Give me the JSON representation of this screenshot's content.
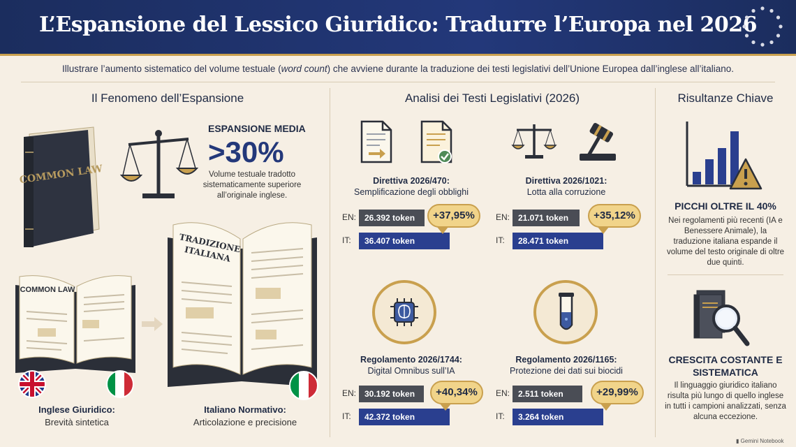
{
  "header": {
    "title": "L’Espansione del Lessico Giuridico: Tradurre l’Europa nel 2026",
    "subtitle_before": "Illustrare l’aumento sistematico del volume testuale (",
    "subtitle_em": "word count",
    "subtitle_after": ") che avviene durante la traduzione dei testi legislativi dell’Unione Europea dall’inglese all’italiano."
  },
  "left": {
    "title": "Il Fenomeno dell’Espansione",
    "book_cover_label": "COMMON LAW",
    "avg_label": "ESPANSIONE MEDIA",
    "avg_value": ">30%",
    "avg_desc": "Volume testuale tradotto sistematicamente superiore all’originale inglese.",
    "open_book_en_label": "COMMON LAW",
    "open_book_it_label": "TRADIZIONE ITALIANA",
    "en_caption_title": "Inglese Giuridico:",
    "en_caption_sub": "Brevità sintetica",
    "it_caption_title": "Italiano Normativo:",
    "it_caption_sub": "Articolazione e precisione"
  },
  "middle": {
    "title": "Analisi dei Testi Legislativi (2026)",
    "en_key": "EN:",
    "it_key": "IT:",
    "docs": [
      {
        "id": "Direttiva 2026/470:",
        "desc": "Semplificazione degli obblighi",
        "en": "26.392 token",
        "it": "36.407 token",
        "pct": "+37,95%"
      },
      {
        "id": "Direttiva 2026/1021:",
        "desc": "Lotta alla corruzione",
        "en": "21.071 token",
        "it": "28.471 token",
        "pct": "+35,12%"
      },
      {
        "id": "Regolamento 2026/1744:",
        "desc": "Digital Omnibus sull’IA",
        "en": "30.192 token",
        "it": "42.372 token",
        "pct": "+40,34%"
      },
      {
        "id": "Regolamento 2026/1165:",
        "desc": "Protezione dei dati sui biocidi",
        "en": "2.511 token",
        "it": "3.264 token",
        "pct": "+29,99%"
      }
    ]
  },
  "right": {
    "title": "Risultanze Chiave",
    "k1_head": "PICCHI OLTRE IL 40%",
    "k1_body": "Nei regolamenti più recenti (IA e Benessere Animale), la traduzione italiana espande il volume del testo originale di oltre due quinti.",
    "k2_head": "CRESCITA COSTANTE E SISTEMATICA",
    "k2_body": "Il linguaggio giuridico italiano risulta più lungo di quello inglese in tutti i campioni analizzati, senza alcuna eccezione."
  },
  "footer": {
    "brand": "Gemini Notebook"
  },
  "colors": {
    "navy": "#1b2d5e",
    "gold": "#c9a04e",
    "bar_en": "#4a4d55",
    "bar_it": "#2a3f8f",
    "bg": "#f6efe4"
  }
}
